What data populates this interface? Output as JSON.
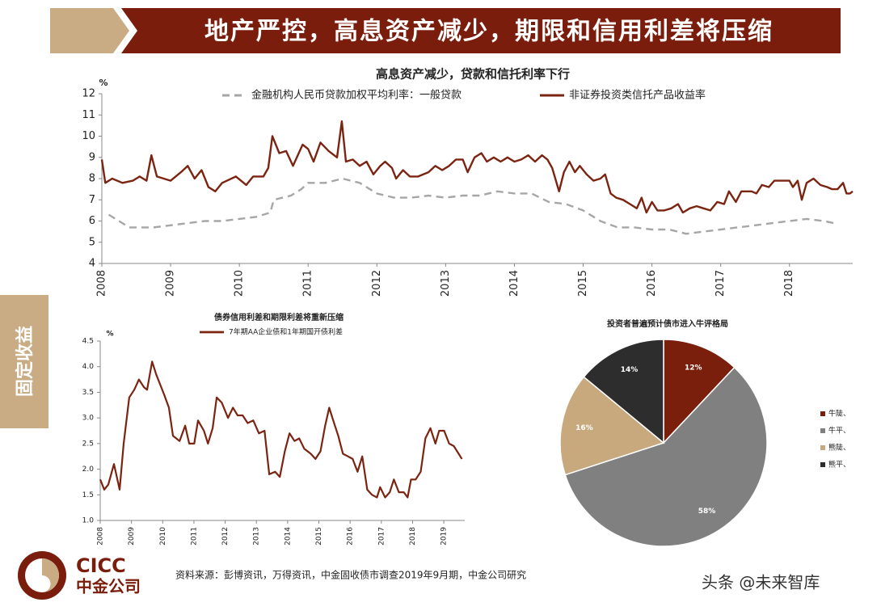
{
  "header": {
    "title": "地产严控，高息资产减少，期限和信用利差将压缩"
  },
  "side_label": "固定收益",
  "logo": {
    "name_en": "CICC",
    "name_cn": "中金公司"
  },
  "source": "资料来源：彭博资讯，万得资讯，中金固收债市调查2019年9月期，中金公司研究",
  "watermark": "头条 @未来智库",
  "chart_data": [
    {
      "type": "line",
      "title": "高息资产减少，贷款和信托利率下行",
      "y_unit": "%",
      "xlim": [
        2008,
        2018.92
      ],
      "xticks": [
        2008,
        2009,
        2010,
        2011,
        2012,
        2013,
        2014,
        2015,
        2016,
        2017,
        2018
      ],
      "ylim": [
        4,
        12
      ],
      "yticks": [
        4,
        5,
        6,
        7,
        8,
        9,
        10,
        11,
        12
      ],
      "series": [
        {
          "name": "金融机构人民币贷款加权平均利率：一般贷款",
          "color": "#a6a6a6",
          "dashed": true,
          "x": [
            2008.1,
            2008.4,
            2008.75,
            2009.0,
            2009.25,
            2009.5,
            2009.75,
            2010.0,
            2010.25,
            2010.45,
            2010.5,
            2010.75,
            2010.9,
            2011.0,
            2011.25,
            2011.5,
            2011.75,
            2012.0,
            2012.25,
            2012.5,
            2012.75,
            2013.0,
            2013.25,
            2013.5,
            2013.75,
            2014.0,
            2014.25,
            2014.5,
            2014.75,
            2015.0,
            2015.25,
            2015.5,
            2015.75,
            2016.0,
            2016.25,
            2016.5,
            2016.75,
            2017.0,
            2017.25,
            2017.5,
            2017.75,
            2018.0,
            2018.25,
            2018.5,
            2018.65
          ],
          "values": [
            6.3,
            5.7,
            5.7,
            5.8,
            5.9,
            6.0,
            6.0,
            6.1,
            6.2,
            6.4,
            7.0,
            7.2,
            7.5,
            7.8,
            7.8,
            8.0,
            7.8,
            7.3,
            7.1,
            7.1,
            7.2,
            7.1,
            7.2,
            7.2,
            7.4,
            7.3,
            7.3,
            6.9,
            6.8,
            6.5,
            6.0,
            5.7,
            5.7,
            5.6,
            5.6,
            5.4,
            5.5,
            5.6,
            5.7,
            5.8,
            5.9,
            6.0,
            6.1,
            6.0,
            5.9
          ]
        },
        {
          "name": "非证券投资类信托产品收益率",
          "color": "#7b2411",
          "x": [
            2008.0,
            2008.05,
            2008.15,
            2008.3,
            2008.45,
            2008.55,
            2008.65,
            2008.72,
            2008.8,
            2009.0,
            2009.15,
            2009.25,
            2009.35,
            2009.45,
            2009.55,
            2009.65,
            2009.75,
            2009.95,
            2010.1,
            2010.2,
            2010.35,
            2010.42,
            2010.48,
            2010.58,
            2010.68,
            2010.78,
            2010.92,
            2011.0,
            2011.08,
            2011.18,
            2011.3,
            2011.42,
            2011.49,
            2011.55,
            2011.65,
            2011.75,
            2011.85,
            2011.95,
            2012.05,
            2012.12,
            2012.22,
            2012.28,
            2012.38,
            2012.48,
            2012.6,
            2012.75,
            2012.85,
            2012.95,
            2013.05,
            2013.15,
            2013.25,
            2013.32,
            2013.42,
            2013.52,
            2013.6,
            2013.7,
            2013.8,
            2013.9,
            2014.0,
            2014.1,
            2014.2,
            2014.3,
            2014.4,
            2014.48,
            2014.55,
            2014.65,
            2014.72,
            2014.8,
            2014.88,
            2014.95,
            2015.05,
            2015.15,
            2015.25,
            2015.32,
            2015.4,
            2015.48,
            2015.58,
            2015.68,
            2015.78,
            2015.85,
            2015.92,
            2016.0,
            2016.08,
            2016.18,
            2016.28,
            2016.38,
            2016.45,
            2016.55,
            2016.65,
            2016.75,
            2016.85,
            2016.95,
            2017.05,
            2017.12,
            2017.22,
            2017.3,
            2017.45,
            2017.52,
            2017.6,
            2017.7,
            2017.78,
            2017.9,
            2018.0,
            2018.05,
            2018.12,
            2018.18,
            2018.25,
            2018.35,
            2018.45,
            2018.55,
            2018.62,
            2018.7,
            2018.78,
            2018.83,
            2018.88,
            2018.92
          ],
          "values": [
            8.9,
            7.8,
            8.0,
            7.8,
            7.9,
            8.1,
            7.9,
            9.1,
            8.1,
            7.9,
            8.3,
            8.6,
            8.0,
            8.4,
            7.6,
            7.4,
            7.8,
            8.1,
            7.7,
            8.1,
            8.1,
            8.5,
            10.0,
            9.2,
            9.3,
            8.6,
            9.6,
            9.4,
            8.8,
            9.7,
            9.3,
            9.0,
            10.7,
            8.8,
            8.9,
            8.6,
            8.8,
            8.2,
            8.6,
            8.8,
            8.5,
            8.0,
            8.4,
            8.1,
            8.1,
            8.3,
            8.6,
            8.4,
            8.6,
            8.9,
            8.9,
            8.3,
            9.0,
            9.2,
            8.8,
            9.0,
            8.8,
            9.0,
            8.8,
            8.9,
            9.1,
            8.8,
            9.1,
            8.9,
            8.5,
            7.4,
            8.3,
            8.8,
            8.3,
            8.6,
            8.2,
            7.9,
            8.0,
            8.2,
            7.3,
            7.1,
            7.0,
            6.8,
            6.6,
            7.1,
            6.4,
            6.9,
            6.5,
            6.5,
            6.6,
            6.8,
            6.4,
            6.6,
            6.7,
            6.6,
            6.5,
            6.9,
            6.8,
            7.4,
            6.9,
            7.4,
            7.4,
            7.3,
            7.7,
            7.6,
            7.9,
            7.9,
            7.9,
            7.6,
            7.9,
            7.0,
            7.8,
            8.0,
            7.7,
            7.6,
            7.5,
            7.5,
            7.8,
            7.3,
            7.3,
            7.4
          ]
        }
      ]
    },
    {
      "type": "line",
      "title": "债券信用利差和期限利差将重新压缩",
      "y_unit": "%",
      "xlim": [
        2008,
        2019.67
      ],
      "xticks": [
        2008,
        2009,
        2010,
        2011,
        2012,
        2013,
        2014,
        2015,
        2016,
        2017,
        2018,
        2019
      ],
      "ylim": [
        1,
        4.5
      ],
      "yticks": [
        {
          "value": 1,
          "label": "1.0"
        },
        {
          "value": 1.5,
          "label": "1.5"
        },
        {
          "value": 2,
          "label": "2.0"
        },
        {
          "value": 2.5,
          "label": "2.5"
        },
        {
          "value": 3,
          "label": "3.0"
        },
        {
          "value": 3.5,
          "label": "3.5"
        },
        {
          "value": 4,
          "label": "4.0"
        },
        {
          "value": 4.5,
          "label": "4.5"
        }
      ],
      "series": [
        {
          "name": "7年期AA企业债和1年期国开债利差",
          "color": "#7b2411",
          "x": [
            2008.0,
            2008.13,
            2008.26,
            2008.44,
            2008.62,
            2008.75,
            2008.93,
            2009.09,
            2009.24,
            2009.4,
            2009.5,
            2009.66,
            2009.79,
            2009.92,
            2010.05,
            2010.2,
            2010.33,
            2010.54,
            2010.72,
            2010.85,
            2011.01,
            2011.13,
            2011.32,
            2011.45,
            2011.6,
            2011.73,
            2011.89,
            2012.09,
            2012.25,
            2012.4,
            2012.56,
            2012.72,
            2012.9,
            2013.08,
            2013.26,
            2013.41,
            2013.6,
            2013.75,
            2013.91,
            2014.06,
            2014.22,
            2014.37,
            2014.53,
            2014.74,
            2014.89,
            2015.05,
            2015.2,
            2015.33,
            2015.46,
            2015.62,
            2015.77,
            2015.93,
            2016.08,
            2016.24,
            2016.39,
            2016.55,
            2016.7,
            2016.86,
            2016.96,
            2017.12,
            2017.27,
            2017.4,
            2017.56,
            2017.72,
            2017.84,
            2017.95,
            2018.1,
            2018.26,
            2018.41,
            2018.57,
            2018.73,
            2018.85,
            2019.01,
            2019.17,
            2019.32,
            2019.58
          ],
          "values": [
            1.8,
            1.6,
            1.7,
            2.1,
            1.6,
            2.5,
            3.4,
            3.55,
            3.75,
            3.6,
            3.55,
            4.1,
            3.85,
            3.65,
            3.45,
            3.2,
            2.65,
            2.55,
            2.85,
            2.5,
            2.5,
            2.95,
            2.75,
            2.5,
            2.8,
            3.4,
            3.3,
            3.0,
            3.2,
            3.05,
            3.05,
            2.9,
            2.95,
            2.7,
            2.75,
            1.9,
            1.95,
            1.85,
            2.35,
            2.7,
            2.55,
            2.6,
            2.4,
            2.3,
            2.2,
            2.35,
            2.85,
            3.2,
            2.95,
            2.65,
            2.3,
            2.25,
            2.2,
            1.95,
            2.25,
            1.6,
            1.5,
            1.45,
            1.65,
            1.45,
            1.55,
            1.8,
            1.55,
            1.55,
            1.45,
            1.8,
            1.8,
            1.95,
            2.6,
            2.8,
            2.5,
            2.75,
            2.75,
            2.5,
            2.45,
            2.2
          ]
        }
      ]
    },
    {
      "type": "pie",
      "title": "投资者普遍预计债市进入牛评格局",
      "legend": "right",
      "categories": [
        "牛陡、",
        "牛平、",
        "熊陡、",
        "熊平、"
      ],
      "values": [
        12,
        58,
        16,
        14
      ],
      "value_labels": [
        "12%",
        "58%",
        "16%",
        "14%"
      ],
      "colors": [
        "#7b1f0d",
        "#808080",
        "#c8a97e",
        "#2d2d2d"
      ]
    }
  ]
}
